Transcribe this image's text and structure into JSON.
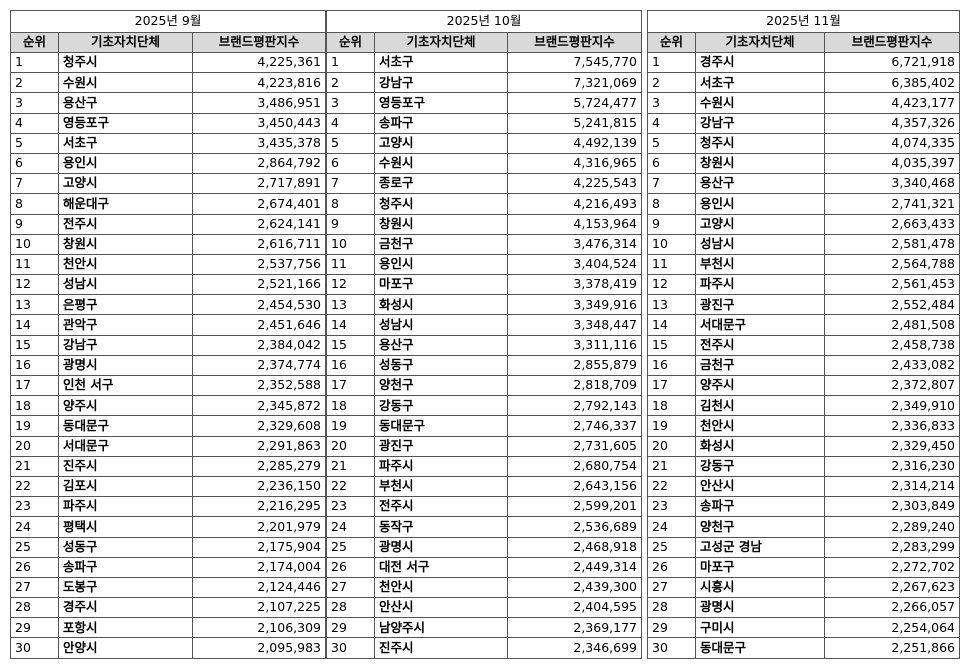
{
  "months": [
    {
      "title": "2025년 9월",
      "headers": [
        "순위",
        "기초자치단체",
        "브랜드평판지수"
      ],
      "rows": [
        [
          "1",
          "청주시",
          "4,225,361"
        ],
        [
          "2",
          "수원시",
          "4,223,816"
        ],
        [
          "3",
          "용산구",
          "3,486,951"
        ],
        [
          "4",
          "영등포구",
          "3,450,443"
        ],
        [
          "5",
          "서초구",
          "3,435,378"
        ],
        [
          "6",
          "용인시",
          "2,864,792"
        ],
        [
          "7",
          "고양시",
          "2,717,891"
        ],
        [
          "8",
          "해운대구",
          "2,674,401"
        ],
        [
          "9",
          "전주시",
          "2,624,141"
        ],
        [
          "10",
          "창원시",
          "2,616,711"
        ],
        [
          "11",
          "천안시",
          "2,537,756"
        ],
        [
          "12",
          "성남시",
          "2,521,166"
        ],
        [
          "13",
          "은평구",
          "2,454,530"
        ],
        [
          "14",
          "관악구",
          "2,451,646"
        ],
        [
          "15",
          "강남구",
          "2,384,042"
        ],
        [
          "16",
          "광명시",
          "2,374,774"
        ],
        [
          "17",
          "인천 서구",
          "2,352,588"
        ],
        [
          "18",
          "양주시",
          "2,345,872"
        ],
        [
          "19",
          "동대문구",
          "2,329,608"
        ],
        [
          "20",
          "서대문구",
          "2,291,863"
        ],
        [
          "21",
          "진주시",
          "2,285,279"
        ],
        [
          "22",
          "김포시",
          "2,236,150"
        ],
        [
          "23",
          "파주시",
          "2,216,295"
        ],
        [
          "24",
          "평택시",
          "2,201,979"
        ],
        [
          "25",
          "성동구",
          "2,175,904"
        ],
        [
          "26",
          "송파구",
          "2,174,004"
        ],
        [
          "27",
          "도봉구",
          "2,124,446"
        ],
        [
          "28",
          "경주시",
          "2,107,225"
        ],
        [
          "29",
          "포항시",
          "2,106,309"
        ],
        [
          "30",
          "안양시",
          "2,095,983"
        ]
      ]
    },
    {
      "title": "2025년 10월",
      "headers": [
        "순위",
        "기초자치단체",
        "브랜드평판지수"
      ],
      "rows": [
        [
          "1",
          "서초구",
          "7,545,770"
        ],
        [
          "2",
          "강남구",
          "7,321,069"
        ],
        [
          "3",
          "영등포구",
          "5,724,477"
        ],
        [
          "4",
          "송파구",
          "5,241,815"
        ],
        [
          "5",
          "고양시",
          "4,492,139"
        ],
        [
          "6",
          "수원시",
          "4,316,965"
        ],
        [
          "7",
          "종로구",
          "4,225,543"
        ],
        [
          "8",
          "청주시",
          "4,216,493"
        ],
        [
          "9",
          "창원시",
          "4,153,964"
        ],
        [
          "10",
          "금천구",
          "3,476,314"
        ],
        [
          "11",
          "용인시",
          "3,404,524"
        ],
        [
          "12",
          "마포구",
          "3,378,419"
        ],
        [
          "13",
          "화성시",
          "3,349,916"
        ],
        [
          "14",
          "성남시",
          "3,348,447"
        ],
        [
          "15",
          "용산구",
          "3,311,116"
        ],
        [
          "16",
          "성동구",
          "2,855,879"
        ],
        [
          "17",
          "양천구",
          "2,818,709"
        ],
        [
          "18",
          "강동구",
          "2,792,143"
        ],
        [
          "19",
          "동대문구",
          "2,746,337"
        ],
        [
          "20",
          "광진구",
          "2,731,605"
        ],
        [
          "21",
          "파주시",
          "2,680,754"
        ],
        [
          "22",
          "부천시",
          "2,643,156"
        ],
        [
          "23",
          "전주시",
          "2,599,201"
        ],
        [
          "24",
          "동작구",
          "2,536,689"
        ],
        [
          "25",
          "광명시",
          "2,468,918"
        ],
        [
          "26",
          "대전 서구",
          "2,449,314"
        ],
        [
          "27",
          "천안시",
          "2,439,300"
        ],
        [
          "28",
          "안산시",
          "2,404,595"
        ],
        [
          "29",
          "남양주시",
          "2,369,177"
        ],
        [
          "30",
          "진주시",
          "2,346,699"
        ]
      ]
    },
    {
      "title": "2025년 11월",
      "headers": [
        "순위",
        "기초자치단체",
        "브랜드평판지수"
      ],
      "rows": [
        [
          "1",
          "경주시",
          "6,721,918"
        ],
        [
          "2",
          "서초구",
          "6,385,402"
        ],
        [
          "3",
          "수원시",
          "4,423,177"
        ],
        [
          "4",
          "강남구",
          "4,357,326"
        ],
        [
          "5",
          "청주시",
          "4,074,335"
        ],
        [
          "6",
          "창원시",
          "4,035,397"
        ],
        [
          "7",
          "용산구",
          "3,340,468"
        ],
        [
          "8",
          "용인시",
          "2,741,321"
        ],
        [
          "9",
          "고양시",
          "2,663,433"
        ],
        [
          "10",
          "성남시",
          "2,581,478"
        ],
        [
          "11",
          "부천시",
          "2,564,788"
        ],
        [
          "12",
          "파주시",
          "2,561,453"
        ],
        [
          "13",
          "광진구",
          "2,552,484"
        ],
        [
          "14",
          "서대문구",
          "2,481,508"
        ],
        [
          "15",
          "전주시",
          "2,458,738"
        ],
        [
          "16",
          "금천구",
          "2,433,082"
        ],
        [
          "17",
          "양주시",
          "2,372,807"
        ],
        [
          "18",
          "김천시",
          "2,349,910"
        ],
        [
          "19",
          "천안시",
          "2,336,833"
        ],
        [
          "20",
          "화성시",
          "2,329,450"
        ],
        [
          "21",
          "강동구",
          "2,316,230"
        ],
        [
          "22",
          "안산시",
          "2,314,214"
        ],
        [
          "23",
          "송파구",
          "2,303,849"
        ],
        [
          "24",
          "양천구",
          "2,289,240"
        ],
        [
          "25",
          "고성군 경남",
          "2,283,299"
        ],
        [
          "26",
          "마포구",
          "2,272,702"
        ],
        [
          "27",
          "시흥시",
          "2,267,623"
        ],
        [
          "28",
          "광명시",
          "2,266,057"
        ],
        [
          "29",
          "구미시",
          "2,254,064"
        ],
        [
          "30",
          "동대문구",
          "2,251,866"
        ]
      ]
    }
  ]
}
